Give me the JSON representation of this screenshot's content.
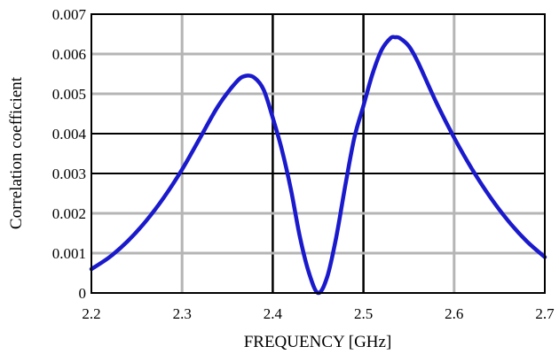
{
  "chart_data": {
    "type": "line",
    "title": "",
    "xlabel": "FREQUENCY [GHz]",
    "ylabel": "Correlation coefficient",
    "xlim": [
      2.2,
      2.7
    ],
    "ylim": [
      0,
      0.007
    ],
    "xticks": [
      "2.2",
      "2.3",
      "2.4",
      "2.5",
      "2.6",
      "2.7"
    ],
    "yticks": [
      "0",
      "0.001",
      "0.002",
      "0.003",
      "0.004",
      "0.005",
      "0.006",
      "0.007"
    ],
    "grid": true,
    "series": [
      {
        "color": "#1a1acc",
        "x": [
          2.2,
          2.22,
          2.24,
          2.26,
          2.28,
          2.3,
          2.32,
          2.34,
          2.36,
          2.37,
          2.38,
          2.39,
          2.4,
          2.41,
          2.42,
          2.43,
          2.44,
          2.45,
          2.46,
          2.47,
          2.48,
          2.49,
          2.5,
          2.51,
          2.52,
          2.53,
          2.535,
          2.54,
          2.55,
          2.56,
          2.58,
          2.6,
          2.62,
          2.64,
          2.66,
          2.68,
          2.7
        ],
        "y": [
          0.0006,
          0.0009,
          0.0013,
          0.0018,
          0.0024,
          0.0031,
          0.0039,
          0.0047,
          0.0053,
          0.00545,
          0.0054,
          0.0051,
          0.0044,
          0.0036,
          0.0026,
          0.0014,
          0.0005,
          0.0,
          0.0004,
          0.0014,
          0.0027,
          0.0039,
          0.0047,
          0.0055,
          0.0061,
          0.0064,
          0.00642,
          0.0064,
          0.0062,
          0.0058,
          0.0048,
          0.0039,
          0.0031,
          0.0024,
          0.0018,
          0.0013,
          0.0009
        ]
      }
    ],
    "styles": {
      "grid_light": "#b5b5b5",
      "grid_dark": "#000000",
      "axis_color": "#000000"
    }
  }
}
